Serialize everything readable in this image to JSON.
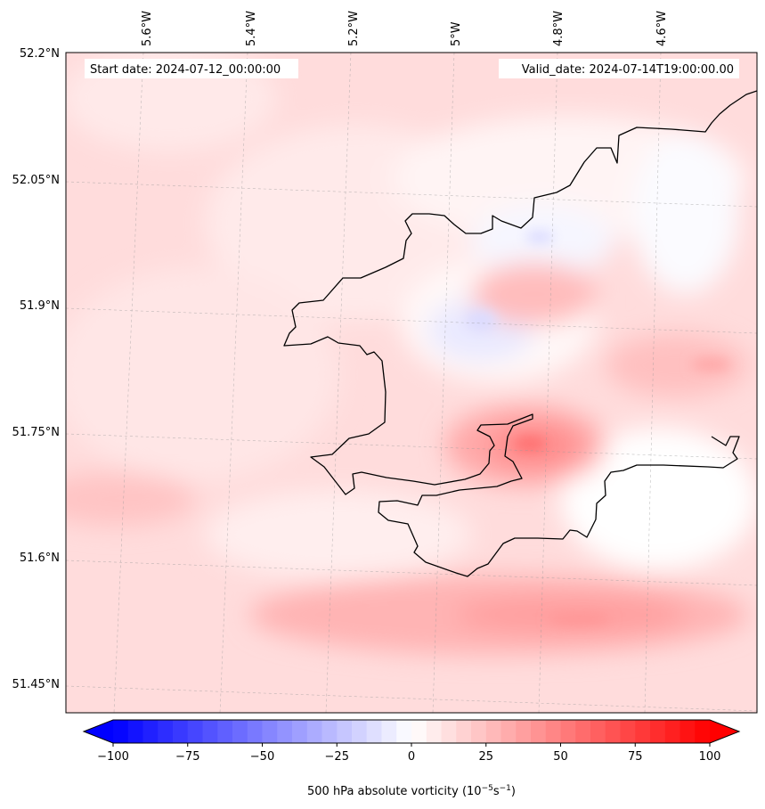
{
  "map": {
    "start_label": "Start date: 2024-07-12_00:00:00",
    "valid_label": "Valid_date: 2024-07-14T19:00:00.00",
    "lon_labels": [
      "5.6°W",
      "5.4°W",
      "5.2°W",
      "5°W",
      "4.8°W",
      "4.6°W"
    ],
    "lat_labels": [
      "52.2°N",
      "52.05°N",
      "51.9°N",
      "51.75°N",
      "51.6°N",
      "51.45°N"
    ],
    "colorbar": {
      "ticks": [
        "−100",
        "−75",
        "−50",
        "−25",
        "0",
        "25",
        "50",
        "75",
        "100"
      ],
      "min": -100,
      "max": 100,
      "label": "500 hPa absolute vorticity (10",
      "unit_exp1": "−5",
      "unit_mid": "s",
      "unit_exp2": "−1",
      "unit_close": ")",
      "colormap": "bwr",
      "colors": {
        "neg": "#0000ff",
        "zero": "#ffffff",
        "pos": "#ff0000"
      }
    }
  }
}
